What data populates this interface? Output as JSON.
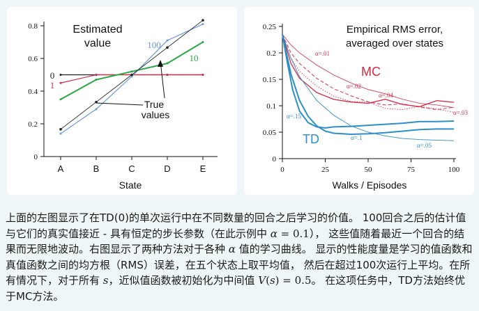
{
  "chart_data": [
    {
      "type": "line",
      "title": "Estimated value",
      "title_lines": [
        "Estimated",
        "value"
      ],
      "xlabel": "State",
      "ylabel": "",
      "categories": [
        "A",
        "B",
        "C",
        "D",
        "E"
      ],
      "ylim": [
        0,
        0.85
      ],
      "yticks": [
        "0",
        "0.2",
        "0.4",
        "0.6",
        "0.8"
      ],
      "series": [
        {
          "name": "0",
          "color": "#222222",
          "values": [
            0.5,
            0.5,
            0.5,
            0.5,
            0.5
          ]
        },
        {
          "name": "1",
          "color": "#d62a45",
          "values": [
            0.45,
            0.5,
            0.5,
            0.5,
            0.5
          ]
        },
        {
          "name": "10",
          "color": "#27a844",
          "values": [
            0.35,
            0.47,
            0.52,
            0.57,
            0.7
          ]
        },
        {
          "name": "100",
          "color": "#6a9ad8",
          "values": [
            0.14,
            0.29,
            0.49,
            0.71,
            0.81
          ]
        },
        {
          "name": "True values",
          "color": "#222222",
          "values": [
            0.1667,
            0.3333,
            0.5,
            0.6667,
            0.8333
          ]
        }
      ],
      "annotation": [
        "True",
        "values"
      ]
    },
    {
      "type": "line",
      "title": "Empirical RMS error, averaged over states",
      "title_lines": [
        "Empirical RMS error,",
        "averaged over states"
      ],
      "xlabel": "Walks / Episodes",
      "ylabel": "",
      "xlim": [
        0,
        100
      ],
      "ylim": [
        0,
        0.25
      ],
      "xticks": [
        "0",
        "25",
        "50",
        "75",
        "100"
      ],
      "yticks": [
        "0",
        "0.05",
        "0.1",
        "0.15",
        "0.2",
        "0.25"
      ],
      "group_labels": {
        "mc": "MC",
        "td": "TD"
      },
      "series": [
        {
          "group": "MC",
          "alpha": "α=.01",
          "color": "#d62a45",
          "x": [
            0,
            5,
            10,
            20,
            30,
            40,
            50,
            60,
            70,
            80,
            90,
            100
          ],
          "y": [
            0.235,
            0.215,
            0.2,
            0.177,
            0.158,
            0.143,
            0.131,
            0.121,
            0.113,
            0.106,
            0.1,
            0.096
          ]
        },
        {
          "group": "MC",
          "alpha": "α=.02",
          "color": "#d62a45",
          "x": [
            0,
            5,
            10,
            20,
            30,
            40,
            50,
            60,
            70,
            80,
            90,
            100
          ],
          "y": [
            0.235,
            0.2,
            0.18,
            0.152,
            0.132,
            0.119,
            0.11,
            0.103,
            0.1,
            0.098,
            0.096,
            0.095
          ]
        },
        {
          "group": "MC",
          "alpha": "α=.03",
          "color": "#d62a45",
          "x": [
            0,
            5,
            10,
            20,
            30,
            40,
            50,
            60,
            70,
            80,
            90,
            100
          ],
          "y": [
            0.235,
            0.19,
            0.165,
            0.137,
            0.118,
            0.108,
            0.102,
            0.098,
            0.096,
            0.094,
            0.093,
            0.093
          ]
        },
        {
          "group": "MC",
          "alpha": "α=.04",
          "color": "#d62a45",
          "x": [
            0,
            5,
            10,
            20,
            30,
            40,
            50,
            60,
            70,
            80,
            90,
            100
          ],
          "y": [
            0.235,
            0.18,
            0.152,
            0.125,
            0.112,
            0.107,
            0.106,
            0.105,
            0.105,
            0.104,
            0.104,
            0.104
          ]
        },
        {
          "group": "TD",
          "alpha": "α=.05",
          "color": "#2d8fc7",
          "x": [
            0,
            5,
            10,
            20,
            30,
            40,
            50,
            60,
            70,
            80,
            90,
            100
          ],
          "y": [
            0.235,
            0.19,
            0.155,
            0.11,
            0.082,
            0.062,
            0.05,
            0.043,
            0.038,
            0.036,
            0.035,
            0.034
          ]
        },
        {
          "group": "TD",
          "alpha": "α=.1",
          "color": "#2d8fc7",
          "x": [
            0,
            5,
            10,
            15,
            20,
            25,
            30,
            40,
            50,
            60,
            70,
            80,
            90,
            100
          ],
          "y": [
            0.235,
            0.16,
            0.11,
            0.08,
            0.062,
            0.052,
            0.048,
            0.046,
            0.047,
            0.049,
            0.052,
            0.055,
            0.056,
            0.056
          ]
        },
        {
          "group": "TD",
          "alpha": "α=.15",
          "color": "#2d8fc7",
          "x": [
            0,
            3,
            6,
            10,
            15,
            20,
            25,
            30,
            40,
            50,
            60,
            70,
            80,
            90,
            100
          ],
          "y": [
            0.235,
            0.18,
            0.13,
            0.09,
            0.068,
            0.06,
            0.058,
            0.06,
            0.061,
            0.063,
            0.065,
            0.067,
            0.07,
            0.07,
            0.071
          ]
        }
      ]
    }
  ],
  "caption": {
    "parts": [
      {
        "t": "上面的左图显示了在TD(0)的单次运行中在不同数量的回合之后学习的价值。 100回合之后的估计值与它们的真实值接近 - 具有恒定的步长参数（在此示例中 "
      },
      {
        "t": "α",
        "c": "m"
      },
      {
        "t": " = 0.1",
        "c": "mn"
      },
      {
        "t": "）， 这些值随着最近一个回合的结果而无限地波动。右图显示了两种方法对于各种 "
      },
      {
        "t": "α",
        "c": "m"
      },
      {
        "t": " 值的学习曲线。 显示的性能度量是学习的值函数和真值函数之间的均方根（RMS）误差，在五个状态上取平均值， 然后在超过100次运行上平均。在所有情况下，对于所有 "
      },
      {
        "t": "s",
        "c": "m"
      },
      {
        "t": "，近似值函数被初始化为中间值 "
      },
      {
        "t": "V",
        "c": "m"
      },
      {
        "t": "(",
        "c": "mn"
      },
      {
        "t": "s",
        "c": "m"
      },
      {
        "t": ") = 0.5",
        "c": "mn"
      },
      {
        "t": "。 在这项任务中，TD方法始终优于MC方法。"
      }
    ]
  }
}
